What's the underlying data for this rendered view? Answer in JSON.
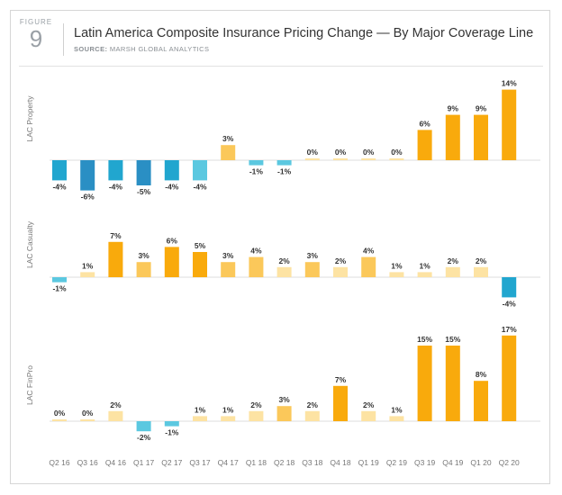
{
  "figure": {
    "word": "FIGURE",
    "number": "9"
  },
  "title": "Latin America Composite Insurance Pricing Change — By Major Coverage Line",
  "subtitle": {
    "prefix": "SOURCE:",
    "text": "MARSH GLOBAL ANALYTICS"
  },
  "colors": {
    "neg_light": "#5bc8e0",
    "neg_mid": "#21a6cf",
    "neg_dark": "#2a8fc4",
    "pos_light": "#fde3a3",
    "pos_mid": "#fbc85a",
    "pos_dark": "#f9aa0c",
    "axis": "#dcdcdc"
  },
  "chart_data": {
    "type": "bar",
    "categories": [
      "Q2 16",
      "Q3 16",
      "Q4 16",
      "Q1 17",
      "Q2 17",
      "Q3 17",
      "Q4 17",
      "Q1 18",
      "Q2 18",
      "Q3 18",
      "Q4 18",
      "Q1 19",
      "Q2 19",
      "Q3 19",
      "Q4 19",
      "Q1 20",
      "Q2 20"
    ],
    "series": [
      {
        "name": "LAC Property",
        "values": [
          -4,
          -6,
          -4,
          -5,
          -4,
          -4,
          3,
          -1,
          -1,
          0,
          0,
          0,
          0,
          6,
          9,
          9,
          14
        ]
      },
      {
        "name": "LAC Casualty",
        "values": [
          -1,
          1,
          7,
          3,
          6,
          5,
          3,
          4,
          2,
          3,
          2,
          4,
          1,
          1,
          2,
          2,
          -4
        ]
      },
      {
        "name": "LAC FinPro",
        "values": [
          0,
          0,
          2,
          -2,
          -1,
          1,
          1,
          2,
          3,
          2,
          7,
          2,
          1,
          15,
          15,
          8,
          17
        ]
      }
    ],
    "unit": "%"
  }
}
